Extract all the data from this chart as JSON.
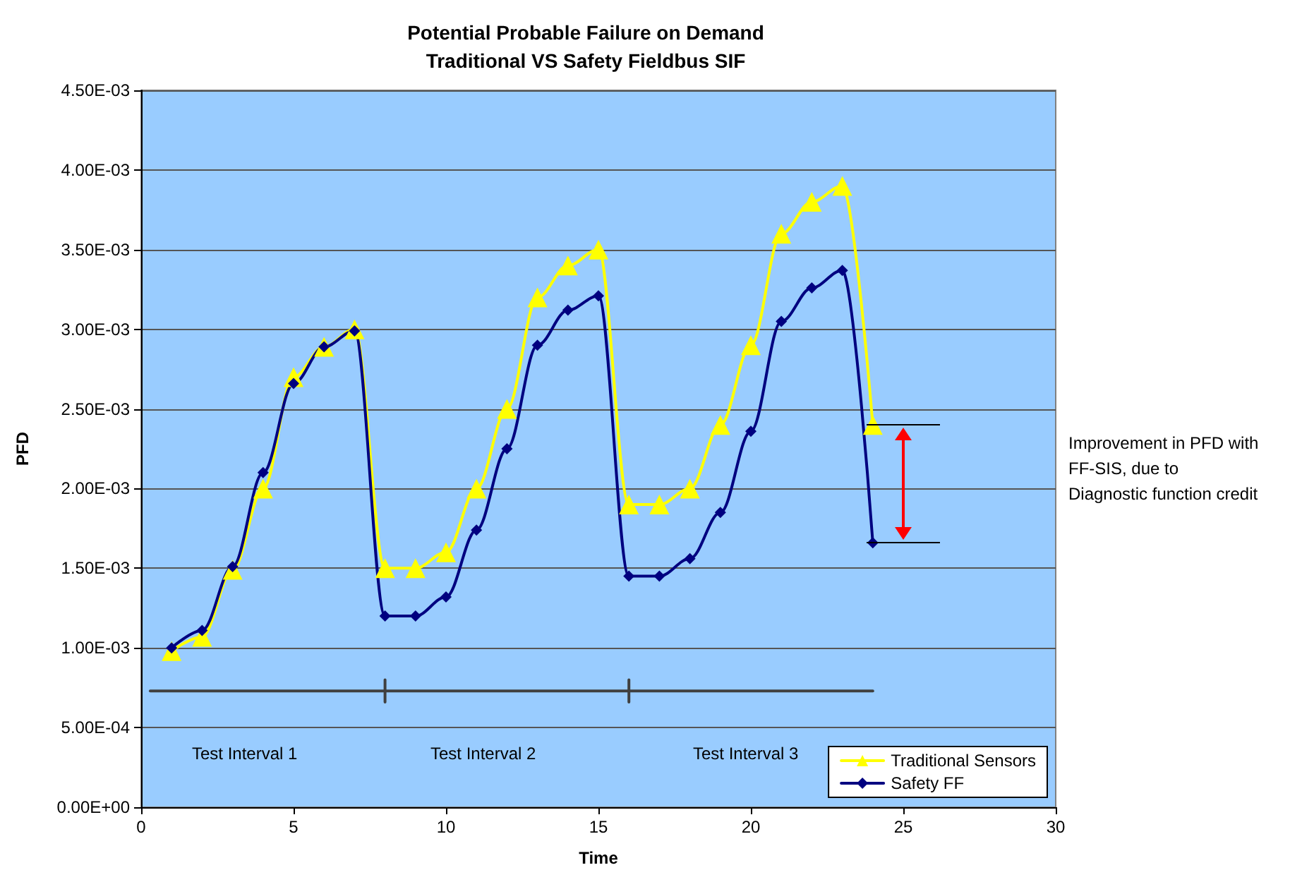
{
  "chart_data": {
    "type": "line",
    "title": "Potential Probable Failure on Demand\nTraditional VS Safety Fieldbus SIF",
    "xlabel": "Time",
    "ylabel": "PFD",
    "xlim": [
      0,
      30
    ],
    "xticks": [
      0,
      5,
      10,
      15,
      20,
      25,
      30
    ],
    "ylim": [
      0,
      0.0045
    ],
    "yticks": [
      {
        "value": 0,
        "label": "0.00E+00"
      },
      {
        "value": 0.0005,
        "label": "5.00E-04"
      },
      {
        "value": 0.001,
        "label": "1.00E-03"
      },
      {
        "value": 0.0015,
        "label": "1.50E-03"
      },
      {
        "value": 0.002,
        "label": "2.00E-03"
      },
      {
        "value": 0.0025,
        "label": "2.50E-03"
      },
      {
        "value": 0.003,
        "label": "3.00E-03"
      },
      {
        "value": 0.0035,
        "label": "3.50E-03"
      },
      {
        "value": 0.004,
        "label": "4.00E-03"
      },
      {
        "value": 0.0045,
        "label": "4.50E-03"
      }
    ],
    "grid": "y",
    "legend": "bottom right",
    "series": [
      {
        "name": "Traditional Sensors",
        "color": "#ffff00",
        "marker": "triangle",
        "x": [
          1,
          2,
          3,
          4,
          5,
          6,
          7,
          8,
          9,
          10,
          11,
          12,
          13,
          14,
          15,
          16,
          17,
          18,
          19,
          20,
          21,
          22,
          23,
          24
        ],
        "values": [
          0.00098,
          0.00107,
          0.00149,
          0.002,
          0.0027,
          0.00289,
          0.003,
          0.0015,
          0.0015,
          0.0016,
          0.002,
          0.0025,
          0.0032,
          0.0034,
          0.0035,
          0.0019,
          0.0019,
          0.002,
          0.0024,
          0.0029,
          0.0036,
          0.0038,
          0.0039,
          0.0024
        ]
      },
      {
        "name": "Safety FF",
        "color": "#000080",
        "marker": "diamond",
        "x": [
          1,
          2,
          3,
          4,
          5,
          6,
          7,
          8,
          9,
          10,
          11,
          12,
          13,
          14,
          15,
          16,
          17,
          18,
          19,
          20,
          21,
          22,
          23,
          24
        ],
        "values": [
          0.001,
          0.00111,
          0.00151,
          0.0021,
          0.00266,
          0.00289,
          0.00299,
          0.0012,
          0.0012,
          0.00132,
          0.00174,
          0.00225,
          0.0029,
          0.00312,
          0.00321,
          0.00145,
          0.00145,
          0.00156,
          0.00185,
          0.00236,
          0.00305,
          0.00326,
          0.00337,
          0.00166
        ]
      },
      {
        "color": "#404040",
        "marker": "none",
        "x": [
          0.3,
          24
        ],
        "values": [
          0.00073,
          0.00073
        ]
      },
      {
        "color": "#404040",
        "marker": "none",
        "x": [
          8,
          8
        ],
        "values": [
          0.00066,
          0.0008
        ]
      },
      {
        "color": "#404040",
        "marker": "none",
        "x": [
          16,
          16
        ],
        "values": [
          0.00066,
          0.0008
        ]
      }
    ],
    "annotations": [
      "Test Interval 1",
      "Test Interval 2",
      "Test Interval 3",
      "Improvement in PFD with\nFF-SIS, due to\nDiagnostic function credit"
    ]
  }
}
